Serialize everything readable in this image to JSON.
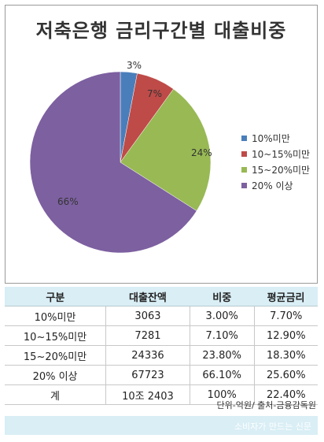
{
  "chart_data": {
    "type": "pie",
    "title": "저축은행 금리구간별 대출비중",
    "categories": [
      "10%미만",
      "10~15%미만",
      "15~20%미만",
      "20% 이상"
    ],
    "values": [
      3,
      7,
      24,
      66
    ],
    "value_labels": [
      "3%",
      "7%",
      "24%",
      "66%"
    ],
    "colors": [
      "#4a7ebb",
      "#be4b48",
      "#98b954",
      "#7d60a0"
    ],
    "legend_position": "right"
  },
  "table": {
    "headers": [
      "구분",
      "대출잔액",
      "비중",
      "평균금리"
    ],
    "rows": [
      [
        "10%미만",
        "3063",
        "3.00%",
        "7.70%"
      ],
      [
        "10~15%미만",
        "7281",
        "7.10%",
        "12.90%"
      ],
      [
        "15~20%미만",
        "24336",
        "23.80%",
        "18.30%"
      ],
      [
        "20% 이상",
        "67723",
        "66.10%",
        "25.60%"
      ],
      [
        "계",
        "10조 2403",
        "100%",
        "22.40%"
      ]
    ]
  },
  "footer": {
    "source": "단위-억원/ 출처-금융감독원",
    "brand": "소비자가 만드는 신문"
  }
}
